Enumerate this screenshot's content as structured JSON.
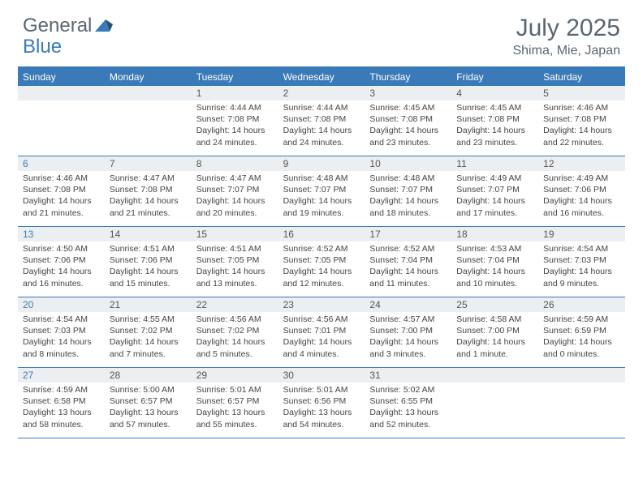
{
  "logo": {
    "general": "General",
    "blue": "Blue"
  },
  "title": {
    "month": "July 2025",
    "location": "Shima, Mie, Japan"
  },
  "colors": {
    "brand_blue": "#3a7ab8",
    "header_text": "#5a6670",
    "daybar_bg": "#eceff1",
    "body_text": "#444444",
    "background": "#ffffff"
  },
  "weekdays": [
    "Sunday",
    "Monday",
    "Tuesday",
    "Wednesday",
    "Thursday",
    "Friday",
    "Saturday"
  ],
  "grid": {
    "first_weekday_index": 2,
    "days_in_month": 31
  },
  "days": {
    "1": {
      "sunrise": "4:44 AM",
      "sunset": "7:08 PM",
      "daylight": "14 hours and 24 minutes."
    },
    "2": {
      "sunrise": "4:44 AM",
      "sunset": "7:08 PM",
      "daylight": "14 hours and 24 minutes."
    },
    "3": {
      "sunrise": "4:45 AM",
      "sunset": "7:08 PM",
      "daylight": "14 hours and 23 minutes."
    },
    "4": {
      "sunrise": "4:45 AM",
      "sunset": "7:08 PM",
      "daylight": "14 hours and 23 minutes."
    },
    "5": {
      "sunrise": "4:46 AM",
      "sunset": "7:08 PM",
      "daylight": "14 hours and 22 minutes."
    },
    "6": {
      "sunrise": "4:46 AM",
      "sunset": "7:08 PM",
      "daylight": "14 hours and 21 minutes."
    },
    "7": {
      "sunrise": "4:47 AM",
      "sunset": "7:08 PM",
      "daylight": "14 hours and 21 minutes."
    },
    "8": {
      "sunrise": "4:47 AM",
      "sunset": "7:07 PM",
      "daylight": "14 hours and 20 minutes."
    },
    "9": {
      "sunrise": "4:48 AM",
      "sunset": "7:07 PM",
      "daylight": "14 hours and 19 minutes."
    },
    "10": {
      "sunrise": "4:48 AM",
      "sunset": "7:07 PM",
      "daylight": "14 hours and 18 minutes."
    },
    "11": {
      "sunrise": "4:49 AM",
      "sunset": "7:07 PM",
      "daylight": "14 hours and 17 minutes."
    },
    "12": {
      "sunrise": "4:49 AM",
      "sunset": "7:06 PM",
      "daylight": "14 hours and 16 minutes."
    },
    "13": {
      "sunrise": "4:50 AM",
      "sunset": "7:06 PM",
      "daylight": "14 hours and 16 minutes."
    },
    "14": {
      "sunrise": "4:51 AM",
      "sunset": "7:06 PM",
      "daylight": "14 hours and 15 minutes."
    },
    "15": {
      "sunrise": "4:51 AM",
      "sunset": "7:05 PM",
      "daylight": "14 hours and 13 minutes."
    },
    "16": {
      "sunrise": "4:52 AM",
      "sunset": "7:05 PM",
      "daylight": "14 hours and 12 minutes."
    },
    "17": {
      "sunrise": "4:52 AM",
      "sunset": "7:04 PM",
      "daylight": "14 hours and 11 minutes."
    },
    "18": {
      "sunrise": "4:53 AM",
      "sunset": "7:04 PM",
      "daylight": "14 hours and 10 minutes."
    },
    "19": {
      "sunrise": "4:54 AM",
      "sunset": "7:03 PM",
      "daylight": "14 hours and 9 minutes."
    },
    "20": {
      "sunrise": "4:54 AM",
      "sunset": "7:03 PM",
      "daylight": "14 hours and 8 minutes."
    },
    "21": {
      "sunrise": "4:55 AM",
      "sunset": "7:02 PM",
      "daylight": "14 hours and 7 minutes."
    },
    "22": {
      "sunrise": "4:56 AM",
      "sunset": "7:02 PM",
      "daylight": "14 hours and 5 minutes."
    },
    "23": {
      "sunrise": "4:56 AM",
      "sunset": "7:01 PM",
      "daylight": "14 hours and 4 minutes."
    },
    "24": {
      "sunrise": "4:57 AM",
      "sunset": "7:00 PM",
      "daylight": "14 hours and 3 minutes."
    },
    "25": {
      "sunrise": "4:58 AM",
      "sunset": "7:00 PM",
      "daylight": "14 hours and 1 minute."
    },
    "26": {
      "sunrise": "4:59 AM",
      "sunset": "6:59 PM",
      "daylight": "14 hours and 0 minutes."
    },
    "27": {
      "sunrise": "4:59 AM",
      "sunset": "6:58 PM",
      "daylight": "13 hours and 58 minutes."
    },
    "28": {
      "sunrise": "5:00 AM",
      "sunset": "6:57 PM",
      "daylight": "13 hours and 57 minutes."
    },
    "29": {
      "sunrise": "5:01 AM",
      "sunset": "6:57 PM",
      "daylight": "13 hours and 55 minutes."
    },
    "30": {
      "sunrise": "5:01 AM",
      "sunset": "6:56 PM",
      "daylight": "13 hours and 54 minutes."
    },
    "31": {
      "sunrise": "5:02 AM",
      "sunset": "6:55 PM",
      "daylight": "13 hours and 52 minutes."
    }
  },
  "labels": {
    "sunrise": "Sunrise:",
    "sunset": "Sunset:",
    "daylight": "Daylight:"
  }
}
